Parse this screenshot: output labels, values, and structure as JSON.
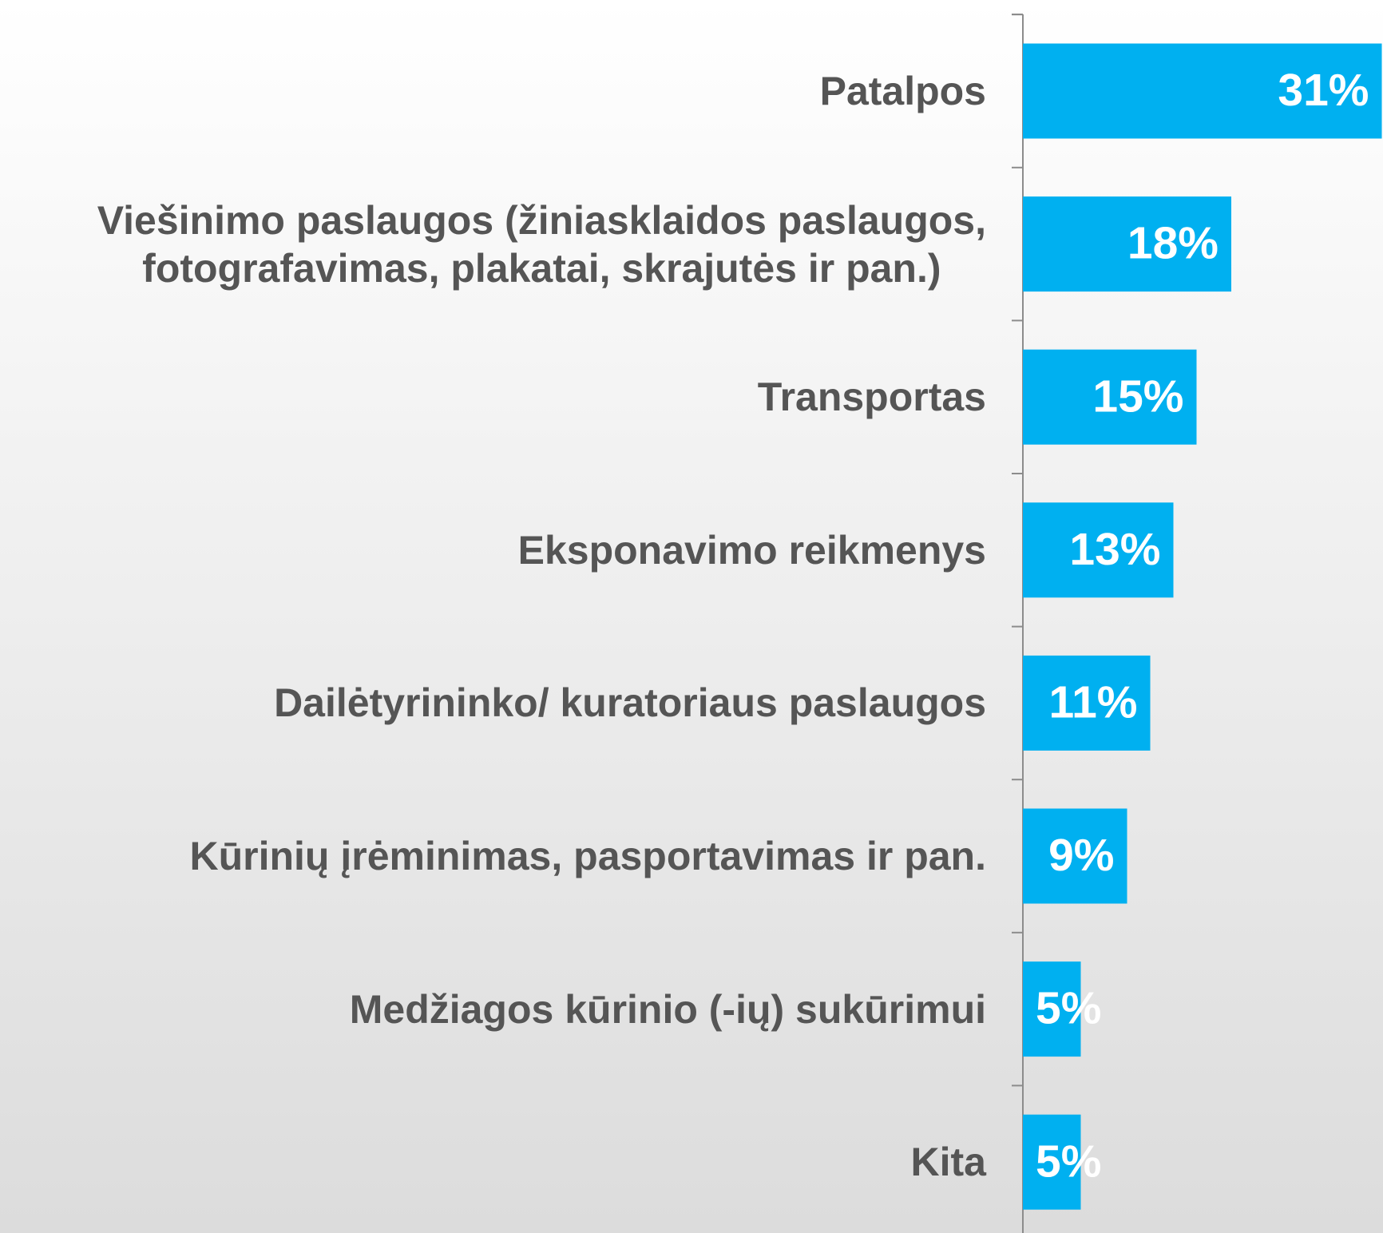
{
  "chart_data": {
    "type": "bar",
    "orientation": "horizontal",
    "categories": [
      "Patalpos",
      "Viešinimo paslaugos (žiniasklaidos paslaugos,\nfotografavimas, plakatai, skrajutės ir pan.)",
      "Transportas",
      "Eksponavimo reikmenys",
      "Dailėtyrininko/ kuratoriaus paslaugos",
      "Kūrinių įrėminimas, pasportavimas ir pan.",
      "Medžiagos kūrinio (-ių) sukūrimui",
      "Kita"
    ],
    "values": [
      31,
      18,
      15,
      13,
      11,
      9,
      5,
      5
    ],
    "value_labels": [
      "31%",
      "18%",
      "15%",
      "13%",
      "11%",
      "9%",
      "5%",
      "5%"
    ],
    "color": "#00b0f0"
  }
}
